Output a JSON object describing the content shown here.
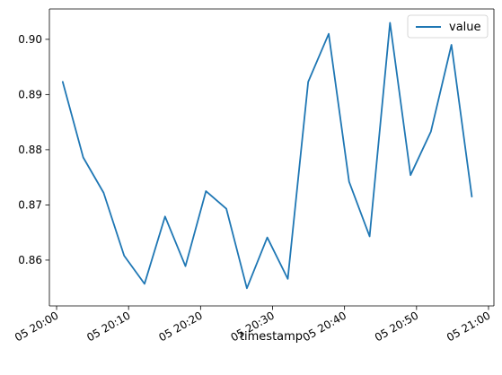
{
  "chart_data": {
    "type": "line",
    "xlabel": "timestamp",
    "ylabel": "",
    "title": "",
    "legend": {
      "placement": "top-right",
      "entries": [
        "value"
      ]
    },
    "grid": false,
    "x_ticks": [
      "05 20:00",
      "05 20:10",
      "05 20:20",
      "05 20:30",
      "05 20:40",
      "05 20:50",
      "05 21:00"
    ],
    "y_ticks": [
      "0.86",
      "0.87",
      "0.88",
      "0.89",
      "0.90"
    ],
    "y_tick_values": [
      0.86,
      0.87,
      0.88,
      0.89,
      0.9
    ],
    "xlim": [
      "2024-01-05 19:59:00",
      "2024-01-05 21:00:45"
    ],
    "ylim": [
      0.8517,
      0.9055
    ],
    "series": [
      {
        "name": "value",
        "color": "#1f77b4",
        "x": [
          "2024-01-05 20:00:51",
          "2024-01-05 20:03:42",
          "2024-01-05 20:06:32",
          "2024-01-05 20:09:23",
          "2024-01-05 20:12:13",
          "2024-01-05 20:15:04",
          "2024-01-05 20:17:54",
          "2024-01-05 20:20:45",
          "2024-01-05 20:23:35",
          "2024-01-05 20:26:26",
          "2024-01-05 20:29:16",
          "2024-01-05 20:32:07",
          "2024-01-05 20:34:57",
          "2024-01-05 20:37:48",
          "2024-01-05 20:40:38",
          "2024-01-05 20:43:29",
          "2024-01-05 20:46:19",
          "2024-01-05 20:49:10",
          "2024-01-05 20:52:00",
          "2024-01-05 20:54:51",
          "2024-01-05 20:57:41"
        ],
        "values": [
          0.8923,
          0.8786,
          0.8722,
          0.8608,
          0.8557,
          0.8679,
          0.8589,
          0.8725,
          0.8693,
          0.8549,
          0.8641,
          0.8566,
          0.8923,
          0.901,
          0.8742,
          0.8643,
          0.903,
          0.8754,
          0.8833,
          0.899,
          0.8715
        ]
      }
    ]
  }
}
